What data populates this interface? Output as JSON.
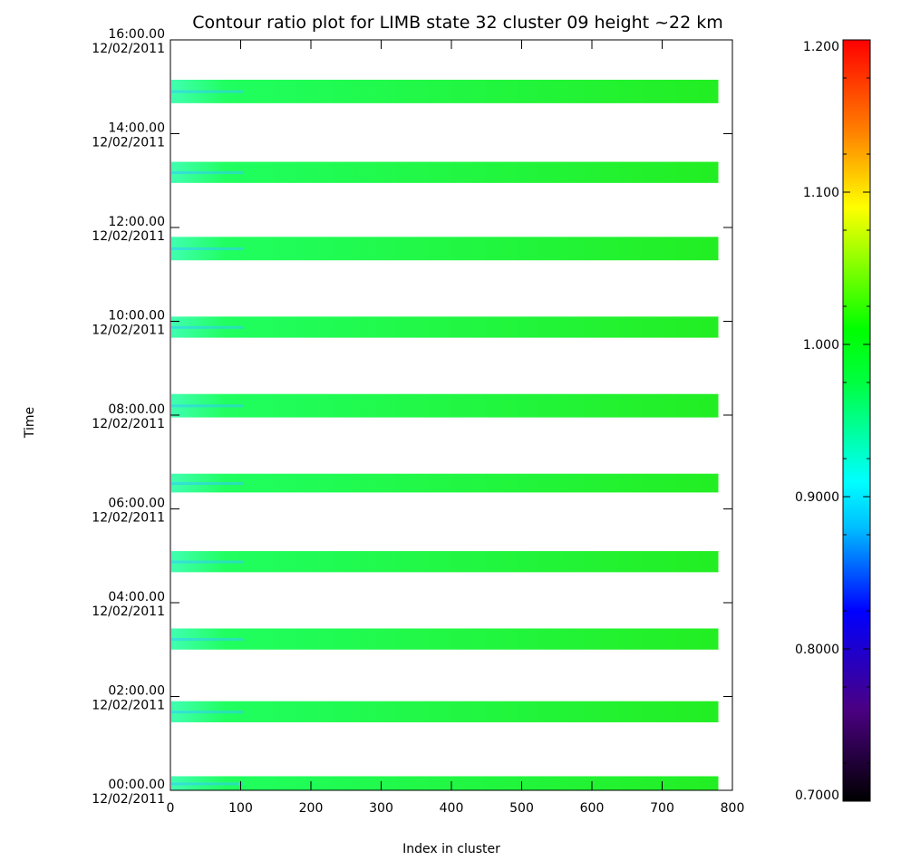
{
  "chart_data": {
    "type": "heatmap",
    "title": "Contour ratio plot for LIMB state 32 cluster 09 height ~22 km",
    "xlabel": "Index in cluster",
    "ylabel": "Time",
    "xlim": [
      0,
      800
    ],
    "ylim_hours": [
      0,
      16
    ],
    "x_ticks": [
      "0",
      "100",
      "200",
      "300",
      "400",
      "500",
      "600",
      "700",
      "800"
    ],
    "y_ticks": [
      {
        "hours": 0,
        "time": "00:00.00",
        "date": "12/02/2011"
      },
      {
        "hours": 2,
        "time": "02:00.00",
        "date": "12/02/2011"
      },
      {
        "hours": 4,
        "time": "04:00.00",
        "date": "12/02/2011"
      },
      {
        "hours": 6,
        "time": "06:00.00",
        "date": "12/02/2011"
      },
      {
        "hours": 8,
        "time": "08:00.00",
        "date": "12/02/2011"
      },
      {
        "hours": 10,
        "time": "10:00.00",
        "date": "12/02/2011"
      },
      {
        "hours": 12,
        "time": "12:00.00",
        "date": "12/02/2011"
      },
      {
        "hours": 14,
        "time": "14:00.00",
        "date": "12/02/2011"
      },
      {
        "hours": 16,
        "time": "16:00.00",
        "date": "12/02/2011"
      }
    ],
    "colorbar": {
      "range": [
        0.7,
        1.2
      ],
      "ticks": [
        {
          "value": 1.2,
          "label": "1.200"
        },
        {
          "value": 1.1,
          "label": "1.100"
        },
        {
          "value": 1.0,
          "label": "1.000"
        },
        {
          "value": 0.9,
          "label": "0.9000"
        },
        {
          "value": 0.8,
          "label": "0.8000"
        },
        {
          "value": 0.7,
          "label": "0.7000"
        }
      ]
    },
    "bands": [
      {
        "start_hours": 0.0,
        "end_hours": 0.3,
        "x_end": 780,
        "typical_ratio": 0.98
      },
      {
        "start_hours": 1.45,
        "end_hours": 1.9,
        "x_end": 780,
        "typical_ratio": 0.98
      },
      {
        "start_hours": 3.0,
        "end_hours": 3.45,
        "x_end": 780,
        "typical_ratio": 0.98
      },
      {
        "start_hours": 4.65,
        "end_hours": 5.1,
        "x_end": 780,
        "typical_ratio": 0.99
      },
      {
        "start_hours": 6.35,
        "end_hours": 6.75,
        "x_end": 780,
        "typical_ratio": 0.98
      },
      {
        "start_hours": 7.95,
        "end_hours": 8.45,
        "x_end": 780,
        "typical_ratio": 0.98
      },
      {
        "start_hours": 9.65,
        "end_hours": 10.1,
        "x_end": 780,
        "typical_ratio": 0.98
      },
      {
        "start_hours": 11.3,
        "end_hours": 11.8,
        "x_end": 780,
        "typical_ratio": 0.99
      },
      {
        "start_hours": 12.95,
        "end_hours": 13.4,
        "x_end": 780,
        "typical_ratio": 0.98
      },
      {
        "start_hours": 14.65,
        "end_hours": 15.15,
        "x_end": 780,
        "typical_ratio": 0.98
      }
    ]
  }
}
